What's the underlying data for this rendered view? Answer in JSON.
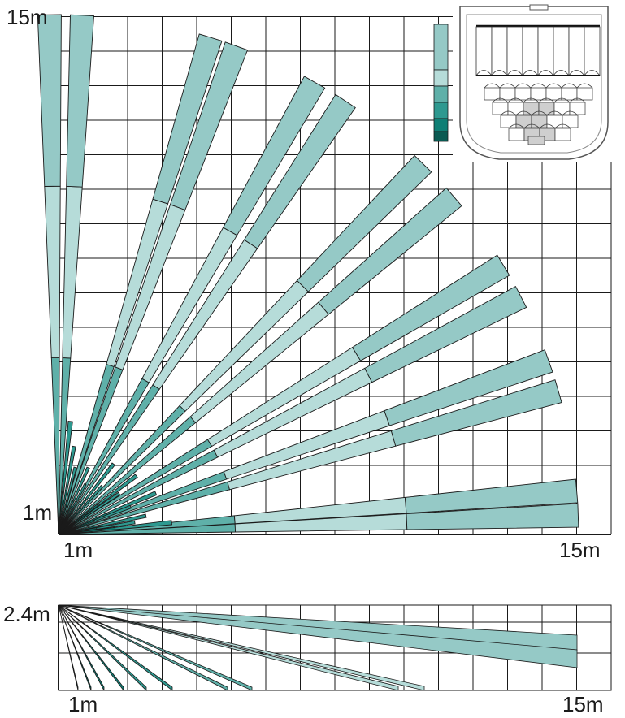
{
  "top_view": {
    "y_max_label": "15m",
    "y_min_label": "1m",
    "x_min_label": "1m",
    "x_max_label": "15m"
  },
  "side_view": {
    "height_label": "2.4m",
    "x_min_label": "1m",
    "x_max_label": "15m"
  },
  "colors": {
    "zone_far": "#95c9c6",
    "zone_mid": "#b6dcd9",
    "zone_near": "#5fb0a9",
    "zone_close": "#2e9990",
    "zone_closest": "#0f7f75",
    "zone_darkest": "#0a5a52",
    "grid": "#1a1a1a",
    "inset_gray": "#cfcfcf"
  },
  "legend": {
    "swatches": [
      "zone_far",
      "zone_mid",
      "zone_near",
      "zone_close",
      "zone_closest",
      "zone_darkest"
    ]
  }
}
